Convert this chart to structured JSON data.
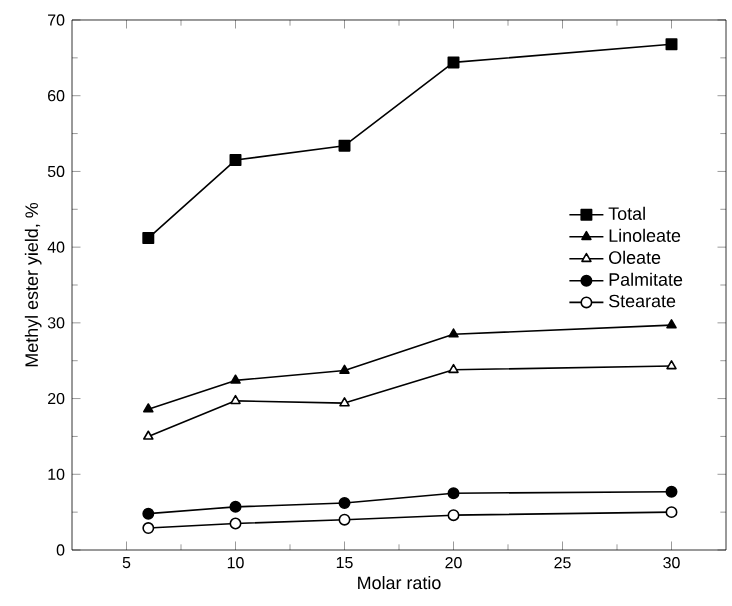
{
  "chart_data": {
    "type": "line",
    "xlabel": "Molar ratio",
    "ylabel": "Methyl ester yield, %",
    "x": [
      6,
      10,
      15,
      20,
      30
    ],
    "xlim": [
      2.5,
      32.5
    ],
    "xticks": [
      5,
      10,
      15,
      20,
      25,
      30
    ],
    "ylim": [
      0,
      70
    ],
    "yticks": [
      0,
      10,
      20,
      30,
      40,
      50,
      60,
      70
    ],
    "grid": false,
    "legend": "right",
    "line_style": "solid",
    "series": [
      {
        "name": "Total",
        "color": "#000000",
        "marker": "square",
        "values": [
          41.2,
          51.5,
          53.4,
          64.4,
          66.8
        ]
      },
      {
        "name": "Linoleate",
        "color": "#000000",
        "marker": "triangle",
        "values": [
          18.6,
          22.4,
          23.7,
          28.5,
          29.7
        ]
      },
      {
        "name": "Oleate",
        "color": "#000000",
        "marker": "triangle",
        "values": [
          15.0,
          19.7,
          19.4,
          23.8,
          24.3
        ]
      },
      {
        "name": "Palmitate",
        "color": "#000000",
        "marker": "circle",
        "values": [
          4.8,
          5.7,
          6.2,
          7.5,
          7.7
        ]
      },
      {
        "name": "Stearate",
        "color": "#000000",
        "marker": "circle",
        "values": [
          2.9,
          3.5,
          4.0,
          4.6,
          5.0
        ]
      }
    ]
  }
}
